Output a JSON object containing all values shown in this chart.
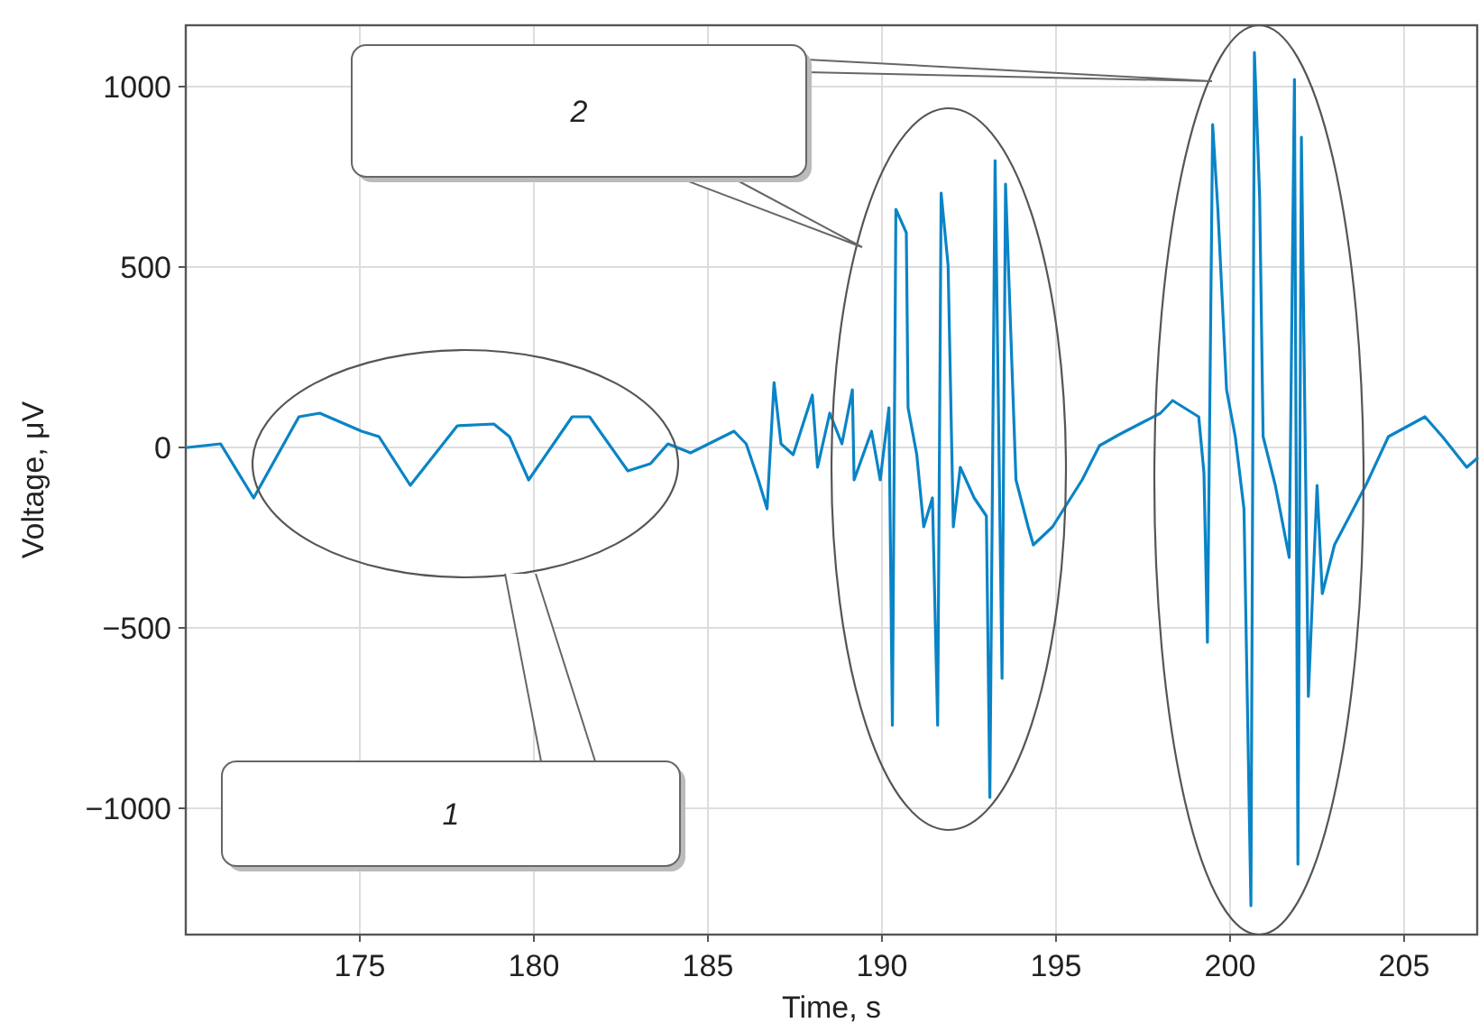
{
  "chart_data": {
    "type": "line",
    "xlabel": "Time, s",
    "ylabel": "Voltage, μV",
    "xlim": [
      170,
      207.1
    ],
    "ylim": [
      -1350,
      1170
    ],
    "xticks": [
      175,
      180,
      185,
      190,
      195,
      200,
      205
    ],
    "yticks": [
      {
        "value": -1000,
        "label": "−1000"
      },
      {
        "value": -500,
        "label": "−500"
      },
      0,
      500,
      1000
    ],
    "grid": true,
    "annotations": [
      "1",
      "2"
    ],
    "series": [
      {
        "color": "#0a84c6",
        "x": [
          170.05,
          171.0,
          171.95,
          173.25,
          173.85,
          175.05,
          175.55,
          176.45,
          177.8,
          178.85,
          179.3,
          179.85,
          181.1,
          181.6,
          182.7,
          183.35,
          183.85,
          184.5,
          185.75,
          186.1,
          186.45,
          186.7,
          186.9,
          187.1,
          187.45,
          188.0,
          188.15,
          188.5,
          188.85,
          189.15,
          189.2,
          189.7,
          189.95,
          190.2,
          190.3,
          190.4,
          190.7,
          190.75,
          191.0,
          191.2,
          191.45,
          191.6,
          191.7,
          191.9,
          192.05,
          192.25,
          192.65,
          193.0,
          193.1,
          193.25,
          193.45,
          193.55,
          193.85,
          194.2,
          194.35,
          194.9,
          195.75,
          196.25,
          196.8,
          198.0,
          198.35,
          199.1,
          199.25,
          199.35,
          199.5,
          199.65,
          199.9,
          200.15,
          200.4,
          200.6,
          200.7,
          200.85,
          200.95,
          201.3,
          201.7,
          201.85,
          201.95,
          202.05,
          202.25,
          202.5,
          202.65,
          203.0,
          203.9,
          204.55,
          205.6,
          206.1,
          206.8,
          207.1
        ],
        "values": [
          0,
          10,
          -140,
          85,
          95,
          45,
          30,
          -105,
          60,
          65,
          30,
          -90,
          85,
          85,
          -65,
          -45,
          10,
          -15,
          45,
          10,
          -90,
          -170,
          180,
          10,
          -20,
          145,
          -55,
          95,
          10,
          160,
          -90,
          45,
          -90,
          110,
          -770,
          660,
          595,
          110,
          -20,
          -220,
          -140,
          -770,
          705,
          505,
          -220,
          -55,
          -140,
          -190,
          -970,
          795,
          -640,
          730,
          -90,
          -220,
          -270,
          -220,
          -90,
          5,
          35,
          95,
          130,
          85,
          -70,
          -540,
          895,
          660,
          160,
          30,
          -170,
          -1270,
          1095,
          695,
          30,
          -105,
          -305,
          1020,
          -1155,
          860,
          -690,
          -105,
          -405,
          -270,
          -105,
          30,
          85,
          30,
          -55,
          -30
        ]
      }
    ]
  }
}
